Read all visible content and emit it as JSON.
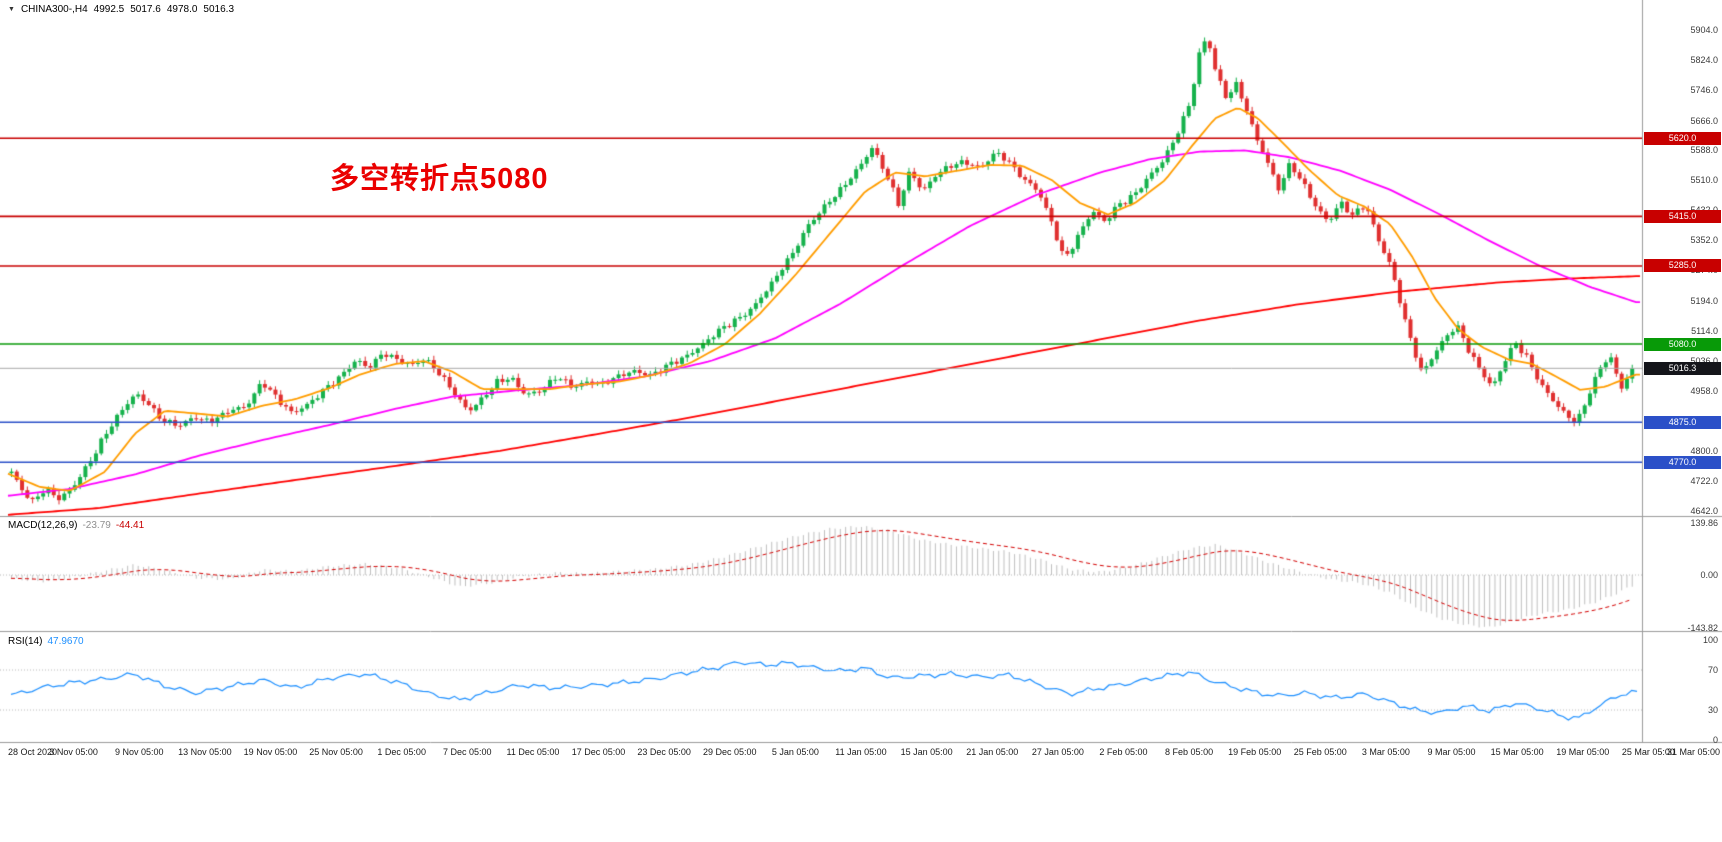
{
  "header": {
    "symbol": "CHINA300-,H4",
    "open": "4992.5",
    "high": "5017.6",
    "low": "4978.0",
    "close": "5016.3"
  },
  "annotation": {
    "text": "多空转折点5080",
    "color": "#ea0000"
  },
  "macd_panel": {
    "label": "MACD(12,26,9)",
    "macd_value": "-23.79",
    "signal_value": "-44.41",
    "axis_labels": [
      "139.86",
      "0.00",
      "-143.82"
    ]
  },
  "rsi_panel": {
    "label": "RSI(14)",
    "value": "47.9670",
    "axis_labels": [
      "100",
      "70",
      "30",
      "0"
    ]
  },
  "chart_data": {
    "type": "candlestick",
    "symbol": "CHINA300-",
    "timeframe": "H4",
    "current": {
      "open": 4992.5,
      "high": 5017.6,
      "low": 4978.0,
      "close": 5016.3
    },
    "current_price": 5016.3,
    "y_axis": {
      "min": 4642.0,
      "max": 5904.0,
      "ticks": [
        "5904.0",
        "5824.0",
        "5746.0",
        "5666.0",
        "5588.0",
        "5510.0",
        "5432.0",
        "5352.0",
        "5274.0",
        "5194.0",
        "5114.0",
        "5036.0",
        "4958.0",
        "4880.0",
        "4800.0",
        "4722.0",
        "4642.0"
      ]
    },
    "x_labels": [
      "28 Oct 2020",
      "3 Nov 05:00",
      "9 Nov 05:00",
      "13 Nov 05:00",
      "19 Nov 05:00",
      "25 Nov 05:00",
      "1 Dec 05:00",
      "7 Dec 05:00",
      "11 Dec 05:00",
      "17 Dec 05:00",
      "23 Dec 05:00",
      "29 Dec 05:00",
      "5 Jan 05:00",
      "11 Jan 05:00",
      "15 Jan 05:00",
      "21 Jan 05:00",
      "27 Jan 05:00",
      "2 Feb 05:00",
      "8 Feb 05:00",
      "19 Feb 05:00",
      "25 Feb 05:00",
      "3 Mar 05:00",
      "9 Mar 05:00",
      "15 Mar 05:00",
      "19 Mar 05:00",
      "25 Mar 05:00",
      "31 Mar 05:00"
    ],
    "levels": [
      {
        "price": 5620.0,
        "label": "5620.0",
        "color": "#c80000",
        "type": "resistance"
      },
      {
        "price": 5415.0,
        "label": "5415.0",
        "color": "#c80000",
        "type": "resistance"
      },
      {
        "price": 5285.0,
        "label": "5285.0",
        "color": "#c80000",
        "type": "resistance"
      },
      {
        "price": 5080.0,
        "label": "5080.0",
        "color": "#089a08",
        "type": "pivot"
      },
      {
        "price": 4875.0,
        "label": "4875.0",
        "color": "#2b50c8",
        "type": "support"
      },
      {
        "price": 4770.0,
        "label": "4770.0",
        "color": "#2b50c8",
        "type": "support"
      }
    ],
    "colors": {
      "up": "#16b24c",
      "down": "#e03030",
      "ma_fast": "#ff9d00",
      "ma_mid": "#ff00ff",
      "ma_slow": "#ff0000",
      "macd_hist": "#c0c0c0",
      "macd_signal": "#d40000",
      "rsi": "#1E90FF",
      "current_line": "#a8a8a8",
      "current_tag_bg": "#14151a",
      "separator": "#9a9a9a",
      "dotted": "#b8b8b8"
    },
    "close_path": [
      [
        8,
        4755
      ],
      [
        20,
        4700
      ],
      [
        32,
        4668
      ],
      [
        45,
        4705
      ],
      [
        58,
        4672
      ],
      [
        72,
        4700
      ],
      [
        88,
        4768
      ],
      [
        105,
        4845
      ],
      [
        122,
        4905
      ],
      [
        135,
        4950
      ],
      [
        148,
        4925
      ],
      [
        162,
        4880
      ],
      [
        178,
        4862
      ],
      [
        195,
        4890
      ],
      [
        210,
        4878
      ],
      [
        228,
        4902
      ],
      [
        245,
        4915
      ],
      [
        262,
        4985
      ],
      [
        278,
        4930
      ],
      [
        292,
        4896
      ],
      [
        308,
        4925
      ],
      [
        322,
        4958
      ],
      [
        340,
        4990
      ],
      [
        356,
        5040
      ],
      [
        368,
        5020
      ],
      [
        382,
        5055
      ],
      [
        396,
        5038
      ],
      [
        410,
        5025
      ],
      [
        424,
        5045
      ],
      [
        438,
        5005
      ],
      [
        452,
        4955
      ],
      [
        468,
        4905
      ],
      [
        482,
        4940
      ],
      [
        495,
        4975
      ],
      [
        510,
        4990
      ],
      [
        525,
        4950
      ],
      [
        540,
        4958
      ],
      [
        556,
        4992
      ],
      [
        572,
        4968
      ],
      [
        588,
        4985
      ],
      [
        602,
        4972
      ],
      [
        618,
        4995
      ],
      [
        635,
        5012
      ],
      [
        652,
        4998
      ],
      [
        668,
        5022
      ],
      [
        685,
        5048
      ],
      [
        702,
        5080
      ],
      [
        720,
        5115
      ],
      [
        738,
        5148
      ],
      [
        755,
        5185
      ],
      [
        772,
        5240
      ],
      [
        790,
        5310
      ],
      [
        808,
        5395
      ],
      [
        825,
        5440
      ],
      [
        842,
        5490
      ],
      [
        858,
        5545
      ],
      [
        872,
        5595
      ],
      [
        886,
        5520
      ],
      [
        898,
        5448
      ],
      [
        910,
        5540
      ],
      [
        922,
        5480
      ],
      [
        935,
        5520
      ],
      [
        950,
        5548
      ],
      [
        965,
        5562
      ],
      [
        980,
        5540
      ],
      [
        995,
        5580
      ],
      [
        1008,
        5560
      ],
      [
        1022,
        5518
      ],
      [
        1038,
        5480
      ],
      [
        1052,
        5390
      ],
      [
        1064,
        5302
      ],
      [
        1078,
        5368
      ],
      [
        1092,
        5428
      ],
      [
        1105,
        5398
      ],
      [
        1118,
        5448
      ],
      [
        1132,
        5470
      ],
      [
        1148,
        5515
      ],
      [
        1162,
        5558
      ],
      [
        1176,
        5628
      ],
      [
        1190,
        5720
      ],
      [
        1200,
        5855
      ],
      [
        1207,
        5882
      ],
      [
        1215,
        5795
      ],
      [
        1226,
        5725
      ],
      [
        1235,
        5768
      ],
      [
        1245,
        5705
      ],
      [
        1255,
        5625
      ],
      [
        1268,
        5548
      ],
      [
        1278,
        5488
      ],
      [
        1290,
        5558
      ],
      [
        1302,
        5505
      ],
      [
        1315,
        5440
      ],
      [
        1328,
        5398
      ],
      [
        1340,
        5455
      ],
      [
        1352,
        5420
      ],
      [
        1365,
        5445
      ],
      [
        1378,
        5350
      ],
      [
        1390,
        5288
      ],
      [
        1402,
        5170
      ],
      [
        1412,
        5075
      ],
      [
        1422,
        4998
      ],
      [
        1432,
        5045
      ],
      [
        1445,
        5098
      ],
      [
        1456,
        5135
      ],
      [
        1468,
        5065
      ],
      [
        1480,
        5008
      ],
      [
        1492,
        4965
      ],
      [
        1505,
        5042
      ],
      [
        1515,
        5088
      ],
      [
        1528,
        5035
      ],
      [
        1540,
        4972
      ],
      [
        1552,
        4935
      ],
      [
        1565,
        4898
      ],
      [
        1576,
        4872
      ],
      [
        1588,
        4942
      ],
      [
        1600,
        5018
      ],
      [
        1610,
        5052
      ],
      [
        1620,
        4965
      ],
      [
        1628,
        5000
      ],
      [
        1636,
        5016
      ]
    ],
    "ma_fast": [
      [
        8,
        4740
      ],
      [
        40,
        4705
      ],
      [
        70,
        4695
      ],
      [
        105,
        4745
      ],
      [
        135,
        4845
      ],
      [
        165,
        4905
      ],
      [
        195,
        4898
      ],
      [
        228,
        4890
      ],
      [
        262,
        4918
      ],
      [
        295,
        4935
      ],
      [
        330,
        4965
      ],
      [
        360,
        5000
      ],
      [
        395,
        5028
      ],
      [
        424,
        5035
      ],
      [
        452,
        5008
      ],
      [
        482,
        4962
      ],
      [
        515,
        4962
      ],
      [
        550,
        4962
      ],
      [
        588,
        4975
      ],
      [
        620,
        4982
      ],
      [
        655,
        5000
      ],
      [
        690,
        5030
      ],
      [
        725,
        5080
      ],
      [
        760,
        5160
      ],
      [
        795,
        5260
      ],
      [
        830,
        5370
      ],
      [
        865,
        5480
      ],
      [
        895,
        5530
      ],
      [
        925,
        5520
      ],
      [
        958,
        5535
      ],
      [
        990,
        5550
      ],
      [
        1022,
        5548
      ],
      [
        1052,
        5510
      ],
      [
        1080,
        5450
      ],
      [
        1108,
        5420
      ],
      [
        1135,
        5450
      ],
      [
        1165,
        5510
      ],
      [
        1192,
        5600
      ],
      [
        1215,
        5672
      ],
      [
        1238,
        5700
      ],
      [
        1258,
        5672
      ],
      [
        1282,
        5610
      ],
      [
        1310,
        5535
      ],
      [
        1338,
        5470
      ],
      [
        1365,
        5440
      ],
      [
        1390,
        5395
      ],
      [
        1412,
        5310
      ],
      [
        1435,
        5200
      ],
      [
        1458,
        5120
      ],
      [
        1482,
        5072
      ],
      [
        1508,
        5040
      ],
      [
        1532,
        5028
      ],
      [
        1556,
        4995
      ],
      [
        1580,
        4960
      ],
      [
        1605,
        4968
      ],
      [
        1636,
        5000
      ]
    ],
    "ma_mid": [
      [
        8,
        4682
      ],
      [
        70,
        4700
      ],
      [
        135,
        4738
      ],
      [
        200,
        4788
      ],
      [
        262,
        4828
      ],
      [
        330,
        4868
      ],
      [
        395,
        4910
      ],
      [
        452,
        4942
      ],
      [
        515,
        4958
      ],
      [
        580,
        4972
      ],
      [
        645,
        4995
      ],
      [
        710,
        5035
      ],
      [
        775,
        5095
      ],
      [
        840,
        5185
      ],
      [
        905,
        5290
      ],
      [
        970,
        5390
      ],
      [
        1035,
        5470
      ],
      [
        1100,
        5530
      ],
      [
        1150,
        5565
      ],
      [
        1200,
        5585
      ],
      [
        1245,
        5588
      ],
      [
        1290,
        5570
      ],
      [
        1340,
        5535
      ],
      [
        1390,
        5485
      ],
      [
        1440,
        5420
      ],
      [
        1490,
        5350
      ],
      [
        1540,
        5285
      ],
      [
        1590,
        5230
      ],
      [
        1636,
        5190
      ]
    ],
    "ma_slow": [
      [
        8,
        4632
      ],
      [
        100,
        4650
      ],
      [
        200,
        4688
      ],
      [
        300,
        4725
      ],
      [
        400,
        4762
      ],
      [
        500,
        4800
      ],
      [
        600,
        4845
      ],
      [
        700,
        4892
      ],
      [
        800,
        4942
      ],
      [
        900,
        4992
      ],
      [
        1000,
        5042
      ],
      [
        1100,
        5092
      ],
      [
        1200,
        5142
      ],
      [
        1300,
        5185
      ],
      [
        1400,
        5218
      ],
      [
        1500,
        5242
      ],
      [
        1570,
        5252
      ],
      [
        1636,
        5258
      ]
    ],
    "macd": {
      "params": [
        12,
        26,
        9
      ],
      "value": -23.79,
      "signal": -44.41,
      "range": [
        -143.82,
        139.86
      ],
      "path": [
        [
          8,
          -8
        ],
        [
          40,
          -18
        ],
        [
          70,
          -8
        ],
        [
          105,
          12
        ],
        [
          135,
          28
        ],
        [
          165,
          12
        ],
        [
          195,
          -8
        ],
        [
          228,
          -12
        ],
        [
          262,
          14
        ],
        [
          295,
          10
        ],
        [
          330,
          24
        ],
        [
          365,
          30
        ],
        [
          400,
          18
        ],
        [
          430,
          -6
        ],
        [
          460,
          -32
        ],
        [
          490,
          -22
        ],
        [
          520,
          -4
        ],
        [
          556,
          6
        ],
        [
          588,
          4
        ],
        [
          620,
          10
        ],
        [
          655,
          16
        ],
        [
          690,
          28
        ],
        [
          725,
          50
        ],
        [
          760,
          78
        ],
        [
          795,
          105
        ],
        [
          830,
          125
        ],
        [
          860,
          132
        ],
        [
          890,
          120
        ],
        [
          920,
          95
        ],
        [
          950,
          82
        ],
        [
          980,
          72
        ],
        [
          1010,
          62
        ],
        [
          1040,
          42
        ],
        [
          1070,
          15
        ],
        [
          1100,
          8
        ],
        [
          1130,
          22
        ],
        [
          1160,
          48
        ],
        [
          1190,
          72
        ],
        [
          1215,
          82
        ],
        [
          1240,
          62
        ],
        [
          1270,
          32
        ],
        [
          1300,
          8
        ],
        [
          1330,
          -12
        ],
        [
          1360,
          -22
        ],
        [
          1390,
          -48
        ],
        [
          1415,
          -88
        ],
        [
          1440,
          -118
        ],
        [
          1465,
          -135
        ],
        [
          1490,
          -142
        ],
        [
          1515,
          -122
        ],
        [
          1540,
          -105
        ],
        [
          1565,
          -95
        ],
        [
          1590,
          -78
        ],
        [
          1610,
          -58
        ],
        [
          1625,
          -38
        ],
        [
          1636,
          -24
        ]
      ]
    },
    "rsi": {
      "period": 14,
      "value": 47.967,
      "levels": [
        70,
        30
      ],
      "path": [
        [
          8,
          44
        ],
        [
          40,
          52
        ],
        [
          70,
          57
        ],
        [
          105,
          61
        ],
        [
          135,
          66
        ],
        [
          165,
          54
        ],
        [
          195,
          47
        ],
        [
          228,
          53
        ],
        [
          262,
          60
        ],
        [
          295,
          52
        ],
        [
          330,
          62
        ],
        [
          365,
          66
        ],
        [
          400,
          57
        ],
        [
          430,
          46
        ],
        [
          460,
          40
        ],
        [
          490,
          48
        ],
        [
          520,
          55
        ],
        [
          556,
          52
        ],
        [
          588,
          54
        ],
        [
          620,
          57
        ],
        [
          655,
          61
        ],
        [
          690,
          68
        ],
        [
          715,
          72
        ],
        [
          740,
          78
        ],
        [
          765,
          75
        ],
        [
          790,
          77
        ],
        [
          815,
          72
        ],
        [
          840,
          69
        ],
        [
          865,
          72
        ],
        [
          890,
          62
        ],
        [
          920,
          64
        ],
        [
          950,
          66
        ],
        [
          980,
          63
        ],
        [
          1010,
          65
        ],
        [
          1040,
          55
        ],
        [
          1070,
          46
        ],
        [
          1100,
          52
        ],
        [
          1130,
          57
        ],
        [
          1160,
          63
        ],
        [
          1190,
          68
        ],
        [
          1215,
          58
        ],
        [
          1245,
          50
        ],
        [
          1275,
          44
        ],
        [
          1305,
          47
        ],
        [
          1335,
          42
        ],
        [
          1365,
          46
        ],
        [
          1390,
          38
        ],
        [
          1415,
          30
        ],
        [
          1440,
          27
        ],
        [
          1465,
          34
        ],
        [
          1490,
          29
        ],
        [
          1515,
          37
        ],
        [
          1540,
          31
        ],
        [
          1565,
          23
        ],
        [
          1580,
          22
        ],
        [
          1595,
          32
        ],
        [
          1610,
          40
        ],
        [
          1622,
          46
        ],
        [
          1636,
          48
        ]
      ]
    }
  }
}
